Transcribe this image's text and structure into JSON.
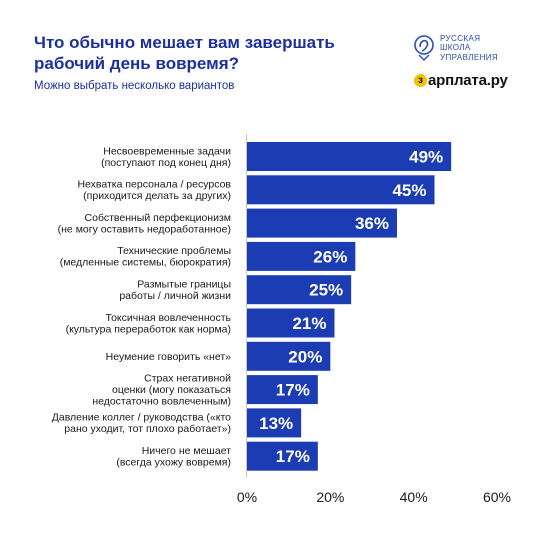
{
  "title": "Что обычно мешает вам завершать рабочий день вовремя?",
  "subtitle": "Можно выбрать несколько вариантов",
  "logos": {
    "school_lines": [
      "РУССКАЯ",
      "ШКОЛА",
      "УПРАВЛЕНИЯ"
    ],
    "zarplata_coin": "з",
    "zarplata_text": "арплата.ру"
  },
  "colors": {
    "bar": "#1c3cb4",
    "title": "#1c2f9e",
    "axis": "#c9c9c9"
  },
  "chart_data": {
    "type": "bar",
    "orientation": "horizontal",
    "title": "Что обычно мешает вам завершать рабочий день вовремя?",
    "subtitle": "Можно выбрать несколько вариантов",
    "categories": [
      [
        "Несвоевременные задачи",
        "(поступают под конец дня)"
      ],
      [
        "Нехватка персонала / ресурсов",
        "(приходится делать за других)"
      ],
      [
        "Собственный перфекционизм",
        "(не могу оставить недоработанное)"
      ],
      [
        "Технические проблемы",
        "(медленные системы, бюрократия)"
      ],
      [
        "Размытые границы",
        "работы / личной жизни"
      ],
      [
        "Токсичная вовлеченность",
        "(культура переработок как норма)"
      ],
      [
        "Неумение говорить «нет»"
      ],
      [
        "Страх негативной",
        "оценки (могу показаться",
        "недостаточно вовлеченным)"
      ],
      [
        "Давление коллег / руководства («кто",
        "рано уходит, тот плохо работает»)"
      ],
      [
        "Ничего не мешает",
        "(всегда ухожу вовремя)"
      ]
    ],
    "values": [
      49,
      45,
      36,
      26,
      25,
      21,
      20,
      17,
      13,
      17
    ],
    "value_labels": [
      "49%",
      "45%",
      "36%",
      "26%",
      "25%",
      "21%",
      "20%",
      "17%",
      "13%",
      "17%"
    ],
    "xlim": [
      0,
      60
    ],
    "xticks": [
      0,
      20,
      40,
      60
    ],
    "xtick_labels": [
      "0%",
      "20%",
      "40%",
      "60%"
    ],
    "grid": false
  }
}
